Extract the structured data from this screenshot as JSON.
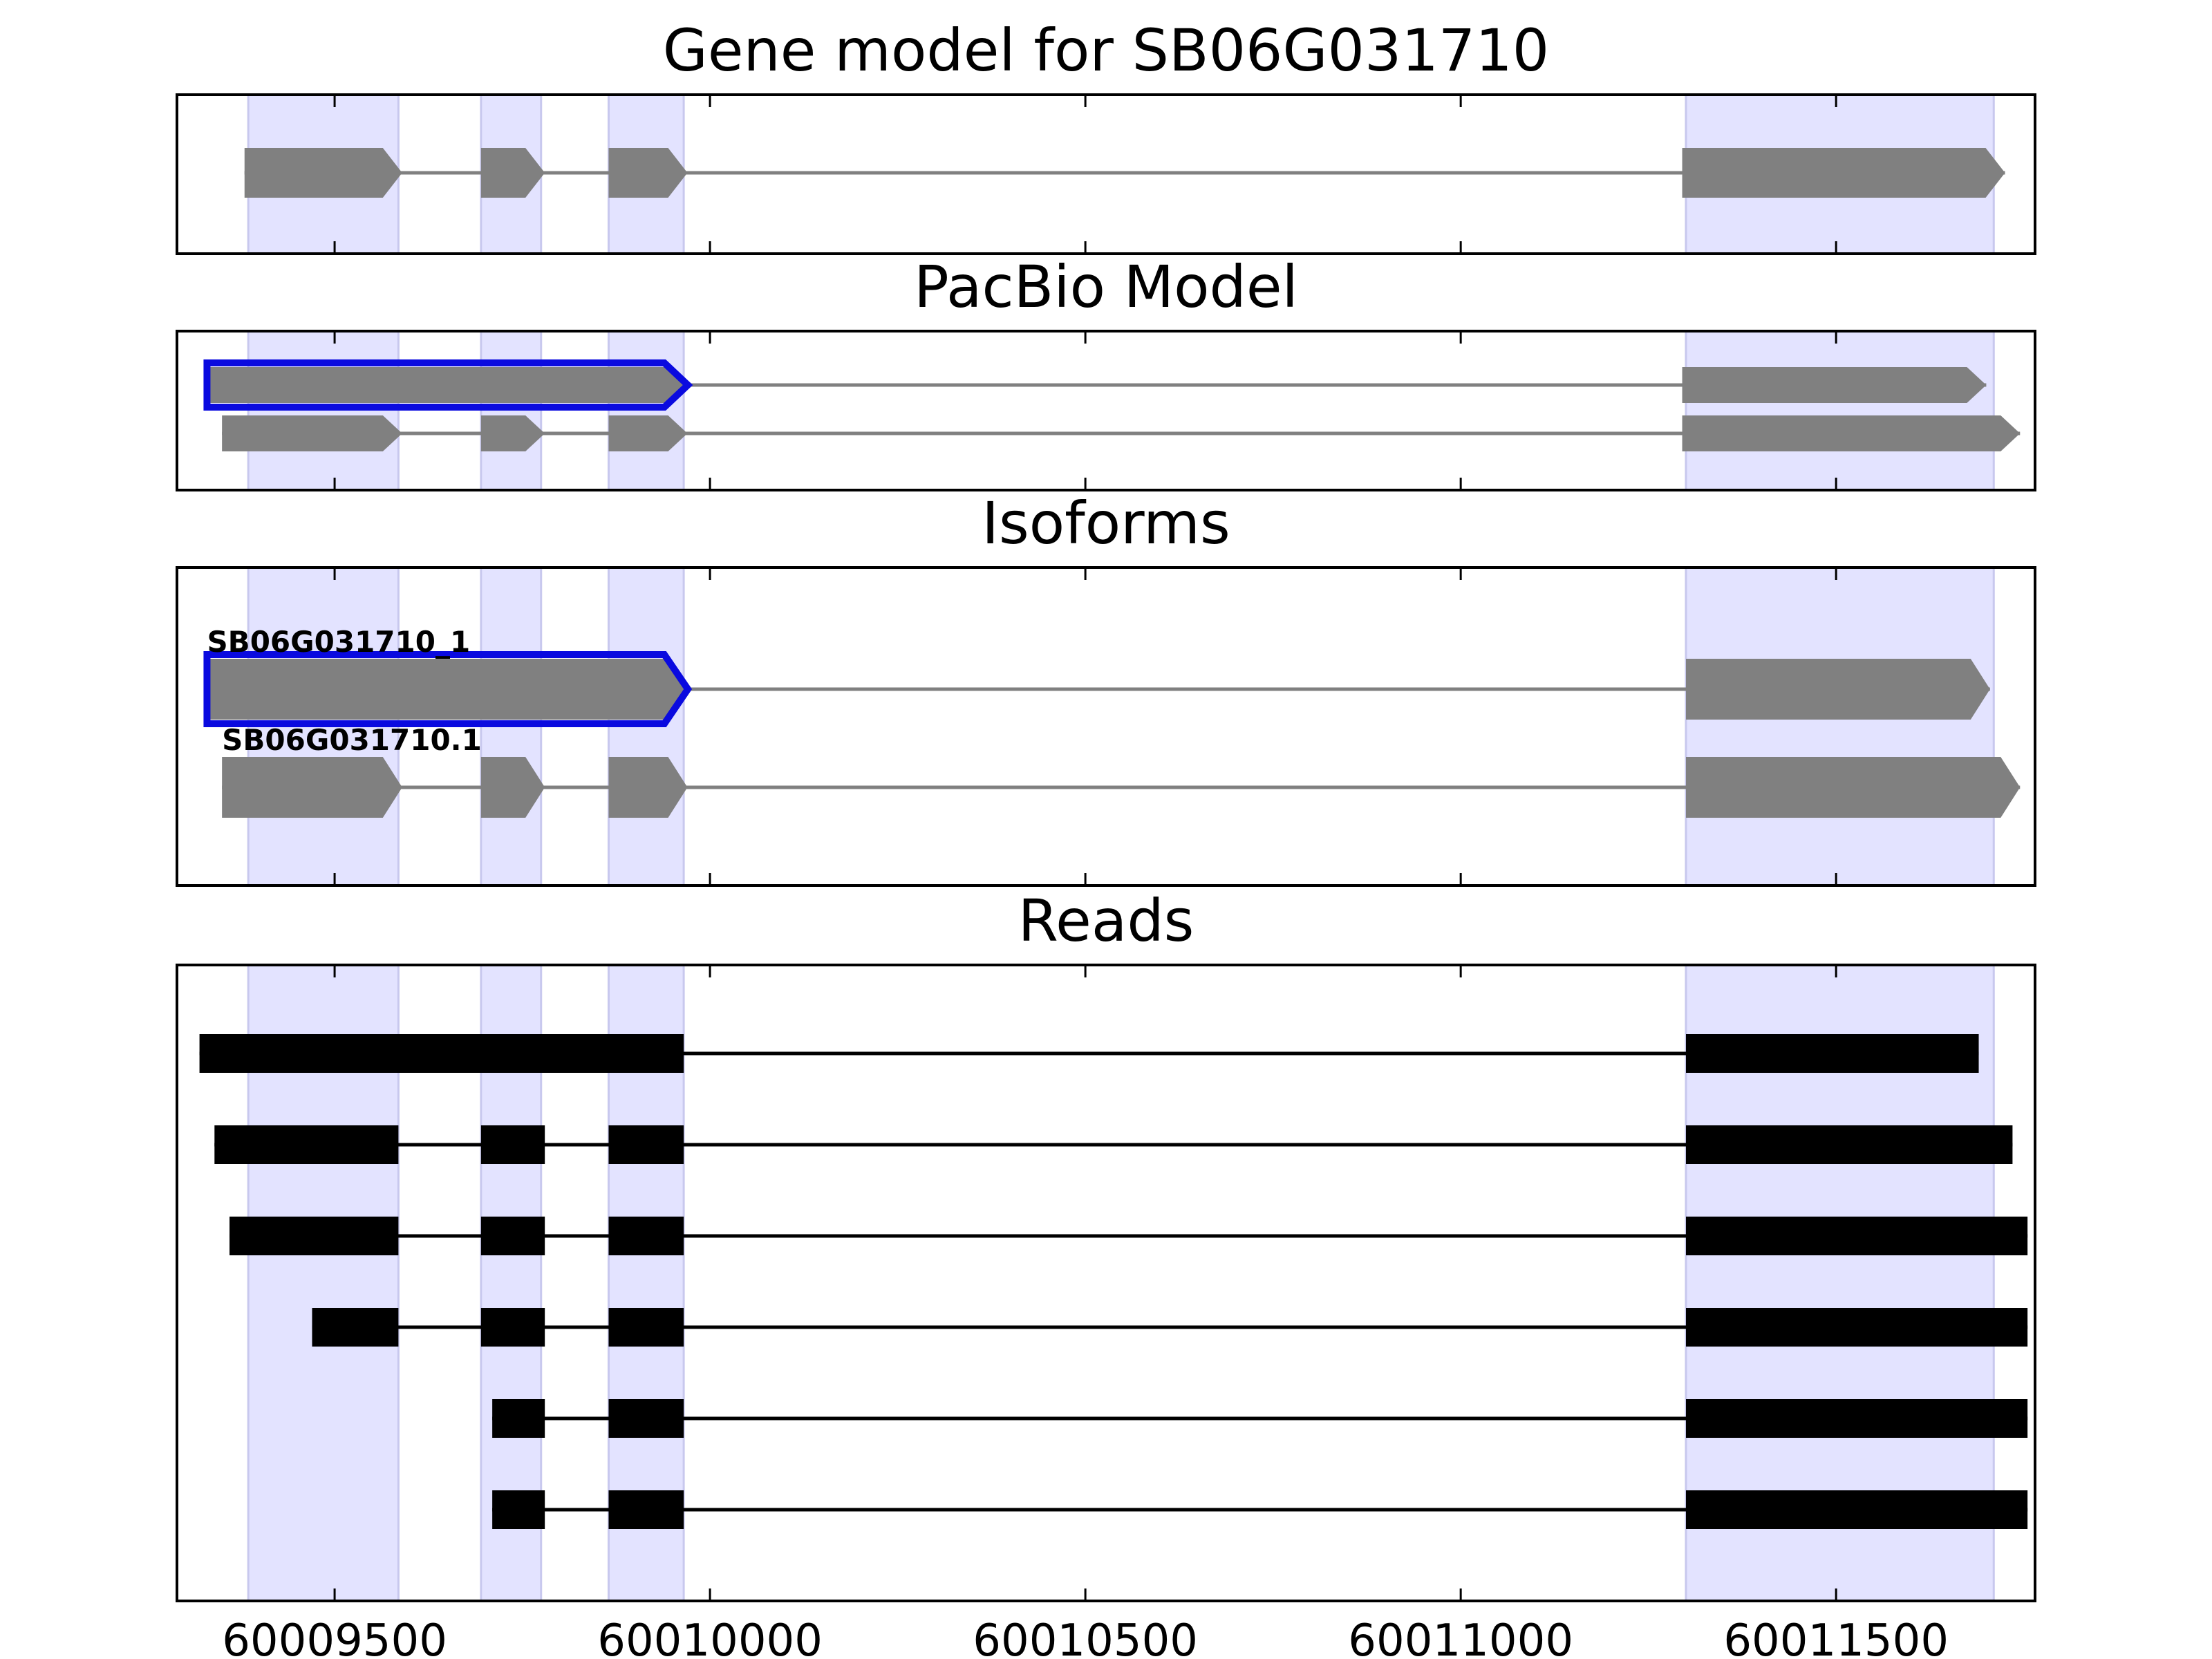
{
  "chart_data": {
    "type": "gene-structure",
    "xlim": [
      60009290,
      60011765
    ],
    "x_ticks": [
      60009500,
      60010000,
      60010500,
      60011000,
      60011500
    ],
    "x_tick_labels": [
      "60009500",
      "60010000",
      "60010500",
      "60011000",
      "60011500"
    ],
    "exon_highlights": [
      [
        60009385,
        60009585
      ],
      [
        60009695,
        60009775
      ],
      [
        60009865,
        60009965
      ],
      [
        60011300,
        60011710
      ]
    ],
    "colors": {
      "highlight": "#e3e3ff",
      "exon": "#808080",
      "selected_outline": "#0a0adf",
      "read": "#000000"
    },
    "panels": [
      {
        "title": "Gene model for SB06G031710",
        "tracks": [
          {
            "label": "",
            "selected": false,
            "exons": [
              [
                60009380,
                60009590
              ],
              [
                60009695,
                60009780
              ],
              [
                60009865,
                60009970
              ],
              [
                60011295,
                60011725
              ]
            ]
          }
        ]
      },
      {
        "title": "PacBio Model",
        "tracks": [
          {
            "label": "",
            "selected": true,
            "exons": [
              [
                60009330,
                60009965
              ],
              [
                60011295,
                60011700
              ]
            ]
          },
          {
            "label": "",
            "selected": false,
            "exons": [
              [
                60009350,
                60009590
              ],
              [
                60009695,
                60009780
              ],
              [
                60009865,
                60009970
              ],
              [
                60011295,
                60011745
              ]
            ]
          }
        ]
      },
      {
        "title": "Isoforms",
        "tracks": [
          {
            "label": "SB06G031710_1",
            "selected": true,
            "exons": [
              [
                60009330,
                60009965
              ],
              [
                60011300,
                60011705
              ]
            ]
          },
          {
            "label": "SB06G031710.1",
            "selected": false,
            "exons": [
              [
                60009350,
                60009590
              ],
              [
                60009695,
                60009780
              ],
              [
                60009865,
                60009970
              ],
              [
                60011300,
                60011745
              ]
            ]
          }
        ]
      },
      {
        "title": "Reads",
        "tracks": [
          {
            "exons": [
              [
                60009320,
                60009965
              ],
              [
                60011300,
                60011690
              ]
            ]
          },
          {
            "exons": [
              [
                60009340,
                60009585
              ],
              [
                60009695,
                60009780
              ],
              [
                60009865,
                60009965
              ],
              [
                60011300,
                60011735
              ]
            ]
          },
          {
            "exons": [
              [
                60009360,
                60009585
              ],
              [
                60009695,
                60009780
              ],
              [
                60009865,
                60009965
              ],
              [
                60011300,
                60011755
              ]
            ]
          },
          {
            "exons": [
              [
                60009470,
                60009585
              ],
              [
                60009695,
                60009780
              ],
              [
                60009865,
                60009965
              ],
              [
                60011300,
                60011755
              ]
            ]
          },
          {
            "exons": [
              [
                60009710,
                60009780
              ],
              [
                60009865,
                60009965
              ],
              [
                60011300,
                60011755
              ]
            ]
          },
          {
            "exons": [
              [
                60009710,
                60009780
              ],
              [
                60009865,
                60009965
              ],
              [
                60011300,
                60011755
              ]
            ]
          }
        ]
      }
    ]
  }
}
